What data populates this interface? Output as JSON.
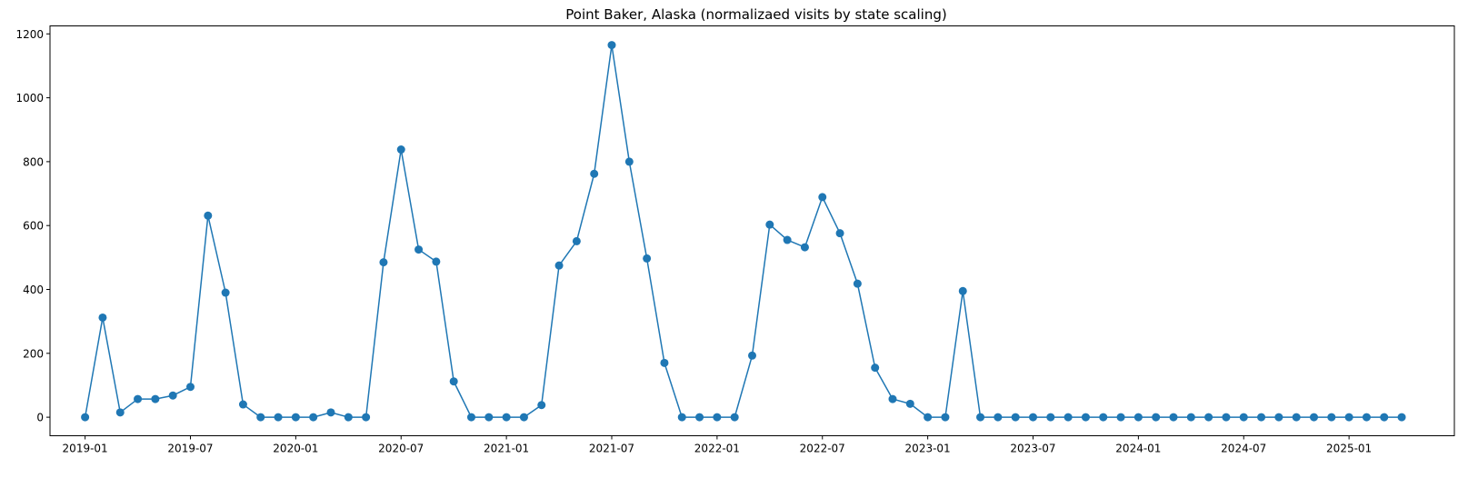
{
  "chart_data": {
    "type": "line",
    "title": "Point Baker, Alaska (normalizaed visits by state scaling)",
    "xlabel": "",
    "ylabel": "",
    "x_ticks": [
      "2019-01",
      "2019-07",
      "2020-01",
      "2020-07",
      "2021-01",
      "2021-07",
      "2022-01",
      "2022-07",
      "2023-01",
      "2023-07",
      "2024-01",
      "2024-07",
      "2025-01"
    ],
    "y_ticks": [
      0,
      200,
      400,
      600,
      800,
      1000,
      1200
    ],
    "xlim": [
      "2018-11",
      "2025-07"
    ],
    "ylim": [
      -58,
      1225
    ],
    "grid": false,
    "color": "#1f77b4",
    "marker": "circle",
    "series": [
      {
        "x": [
          "2019-01",
          "2019-02",
          "2019-03",
          "2019-04",
          "2019-05",
          "2019-06",
          "2019-07",
          "2019-08",
          "2019-09",
          "2019-10",
          "2019-11",
          "2019-12",
          "2020-01",
          "2020-02",
          "2020-03",
          "2020-04",
          "2020-05",
          "2020-06",
          "2020-07",
          "2020-08",
          "2020-09",
          "2020-10",
          "2020-11",
          "2020-12",
          "2021-01",
          "2021-02",
          "2021-03",
          "2021-04",
          "2021-05",
          "2021-06",
          "2021-07",
          "2021-08",
          "2021-09",
          "2021-10",
          "2021-11",
          "2021-12",
          "2022-01",
          "2022-02",
          "2022-03",
          "2022-04",
          "2022-05",
          "2022-06",
          "2022-07",
          "2022-08",
          "2022-09",
          "2022-10",
          "2022-11",
          "2022-12",
          "2023-01",
          "2023-02",
          "2023-03",
          "2023-04",
          "2023-05",
          "2023-06",
          "2023-07",
          "2023-08",
          "2023-09",
          "2023-10",
          "2023-11",
          "2023-12",
          "2024-01",
          "2024-02",
          "2024-03",
          "2024-04",
          "2024-05",
          "2024-06",
          "2024-07",
          "2024-08",
          "2024-09",
          "2024-10",
          "2024-11",
          "2024-12",
          "2025-01",
          "2025-02",
          "2025-03",
          "2025-04"
        ],
        "values": [
          0,
          312,
          15,
          57,
          57,
          68,
          95,
          631,
          390,
          40,
          0,
          0,
          0,
          0,
          15,
          0,
          0,
          485,
          838,
          525,
          487,
          112,
          0,
          0,
          0,
          0,
          38,
          475,
          551,
          762,
          1165,
          800,
          497,
          170,
          0,
          0,
          0,
          0,
          193,
          603,
          555,
          532,
          689,
          576,
          418,
          155,
          57,
          42,
          0,
          0,
          395,
          0,
          0,
          0,
          0,
          0,
          0,
          0,
          0,
          0,
          0,
          0,
          0,
          0,
          0,
          0,
          0,
          0,
          0,
          0,
          0,
          0,
          0,
          0,
          0,
          0
        ]
      }
    ]
  }
}
